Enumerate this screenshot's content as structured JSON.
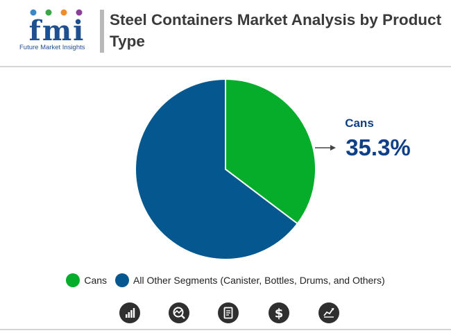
{
  "header": {
    "title": "Steel Containers Market Analysis by Product Type",
    "logo_text": "Future Market Insights",
    "logo_letters": "fmi"
  },
  "chart_data": {
    "type": "pie",
    "title": "Steel Containers Market Analysis by Product Type",
    "slices": [
      {
        "name": "Cans",
        "value": 35.3,
        "color": "#06ad2b"
      },
      {
        "name": "All Other Segments (Canister, Bottles, Drums, and Others)",
        "value": 64.7,
        "color": "#04578f"
      }
    ],
    "start_angle_deg": 0,
    "direction": "clockwise",
    "annotation": {
      "label": "Cans",
      "value_text": "35.3%",
      "color": "#0f3f86"
    },
    "legend_position": "bottom"
  },
  "legend": {
    "items": [
      {
        "label": "Cans",
        "color": "#06ad2b"
      },
      {
        "label": "All Other Segments (Canister, Bottles, Drums, and Others)",
        "color": "#04578f"
      }
    ]
  },
  "footer_icons": [
    "bar-chart-icon",
    "trend-analysis-icon",
    "report-document-icon",
    "dollar-icon",
    "line-chart-icon"
  ]
}
